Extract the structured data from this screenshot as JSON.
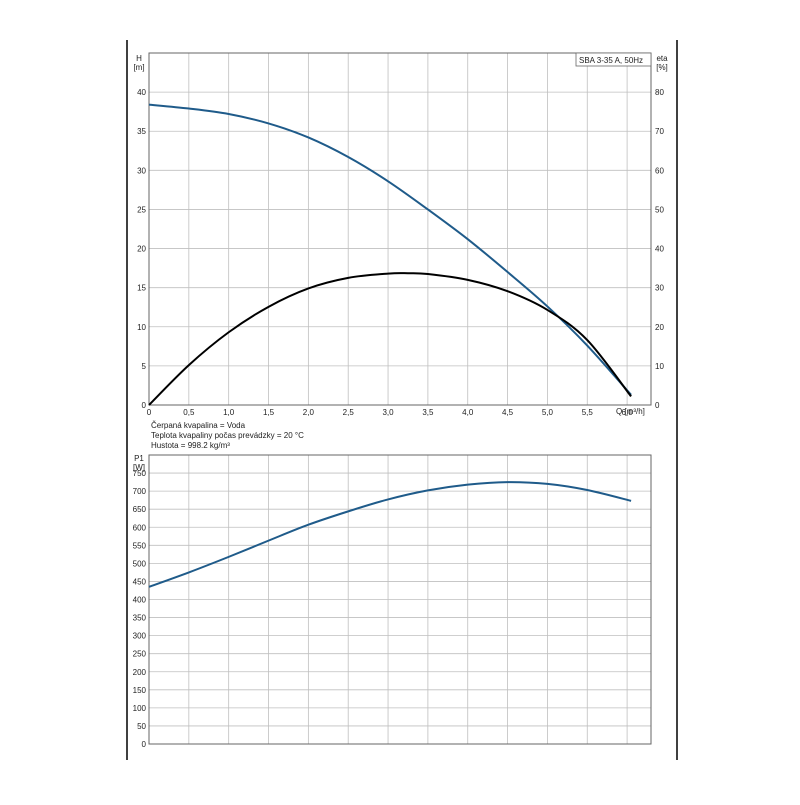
{
  "page_border_color": "#000000",
  "grid_color": "#bfbfbf",
  "chart_data": [
    {
      "type": "line",
      "legend_box": "SBA 3-35 A, 50Hz",
      "legend_placement": "top-right",
      "grid": true,
      "xlabel": "Q [m³/h]",
      "ylabel": "H",
      "ylabel_unit": "[m]",
      "y2label": "eta",
      "y2label_unit": "[%]",
      "xlim": [
        0,
        6.3
      ],
      "ylim": [
        0,
        45
      ],
      "y2lim": [
        0,
        90
      ],
      "x_ticks": [
        "0",
        "0,5",
        "1,0",
        "1,5",
        "2,0",
        "2,5",
        "3,0",
        "3,5",
        "4,0",
        "4,5",
        "5,0",
        "5,5",
        "6,0"
      ],
      "y_ticks": [
        "0",
        "5",
        "10",
        "15",
        "20",
        "25",
        "30",
        "35",
        "40"
      ],
      "y2_ticks": [
        "0",
        "10",
        "20",
        "30",
        "40",
        "50",
        "60",
        "70",
        "80"
      ],
      "series": [
        {
          "axis": "left",
          "color": "#1f5b8a",
          "x": [
            0,
            0.5,
            1.0,
            1.5,
            2.0,
            2.5,
            3.0,
            3.5,
            4.0,
            4.5,
            5.0,
            5.5,
            6.05
          ],
          "y": [
            38.4,
            37.9,
            37.2,
            36.0,
            34.2,
            31.7,
            28.6,
            25.0,
            21.2,
            17.0,
            12.6,
            7.6,
            1.3
          ]
        },
        {
          "axis": "right",
          "color": "#000000",
          "x": [
            0,
            0.5,
            1.0,
            1.5,
            2.0,
            2.5,
            3.0,
            3.25,
            3.5,
            4.0,
            4.5,
            5.0,
            5.5,
            6.05
          ],
          "y": [
            0,
            10.2,
            18.6,
            25.1,
            29.8,
            32.5,
            33.6,
            33.7,
            33.5,
            32.0,
            29.1,
            24.3,
            16.6,
            2.2
          ]
        }
      ],
      "notes": [
        "Čerpaná kvapalina = Voda",
        "Teplota kvapaliny počas prevádzky = 20 °C",
        "Hustota = 998.2 kg/m³"
      ]
    },
    {
      "type": "line",
      "grid": true,
      "ylabel": "P1",
      "ylabel_unit": "[W]",
      "xlim": [
        0,
        6.3
      ],
      "ylim": [
        0,
        800
      ],
      "y_ticks": [
        "0",
        "50",
        "100",
        "150",
        "200",
        "250",
        "300",
        "350",
        "400",
        "450",
        "500",
        "550",
        "600",
        "650",
        "700",
        "750"
      ],
      "series": [
        {
          "color": "#1f5b8a",
          "x": [
            0,
            0.5,
            1.0,
            1.5,
            2.0,
            2.5,
            3.0,
            3.5,
            4.0,
            4.5,
            5.0,
            5.5,
            6.05
          ],
          "y": [
            435,
            475,
            518,
            563,
            607,
            644,
            677,
            702,
            718,
            725,
            720,
            703,
            673
          ]
        }
      ]
    }
  ]
}
